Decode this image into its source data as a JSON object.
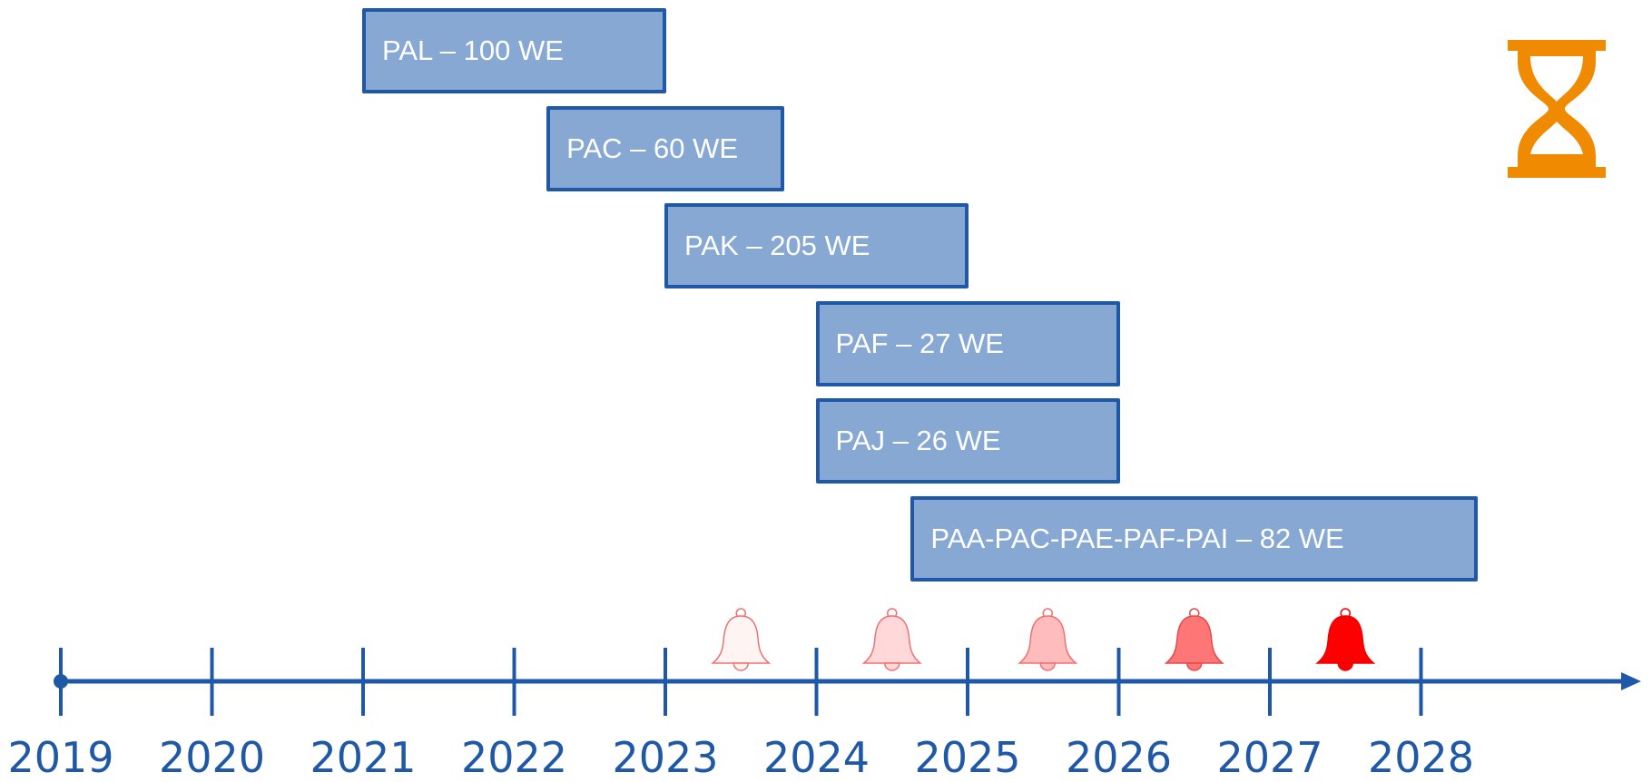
{
  "timeline": {
    "years": [
      "2019",
      "2020",
      "2021",
      "2022",
      "2023",
      "2024",
      "2025",
      "2026",
      "2027",
      "2028"
    ],
    "axis_color": "#1f58a6"
  },
  "bars": [
    {
      "label": "PAL – 100 WE",
      "start": 2021.0,
      "end": 2023.0
    },
    {
      "label": "PAC – 60 WE",
      "start": 2022.22,
      "end": 2023.78
    },
    {
      "label": "PAK – 205 WE",
      "start": 2023.0,
      "end": 2025.0
    },
    {
      "label": "PAF – 27 WE",
      "start": 2024.0,
      "end": 2026.0
    },
    {
      "label": "PAJ – 26 WE",
      "start": 2024.0,
      "end": 2026.0
    },
    {
      "label": "PAA-PAC-PAE-PAF-PAI – 82 WE",
      "start": 2024.63,
      "end": 2028.37
    }
  ],
  "bar_style": {
    "fill": "#86a8d2",
    "stroke": "#1f58a6",
    "text": "#ffffff"
  },
  "bells": [
    {
      "year": 2023.5,
      "fill": "#fff4f4",
      "stroke": "#f07070"
    },
    {
      "year": 2024.5,
      "fill": "#ffd9d9",
      "stroke": "#f07070"
    },
    {
      "year": 2025.53,
      "fill": "#ffbcbc",
      "stroke": "#f07070"
    },
    {
      "year": 2026.5,
      "fill": "#ff7676",
      "stroke": "#e04a4a"
    },
    {
      "year": 2027.5,
      "fill": "#ff0000",
      "stroke": "#ee0000"
    }
  ],
  "hourglass": {
    "icon": "hourglass-icon",
    "color": "#f08a00"
  }
}
